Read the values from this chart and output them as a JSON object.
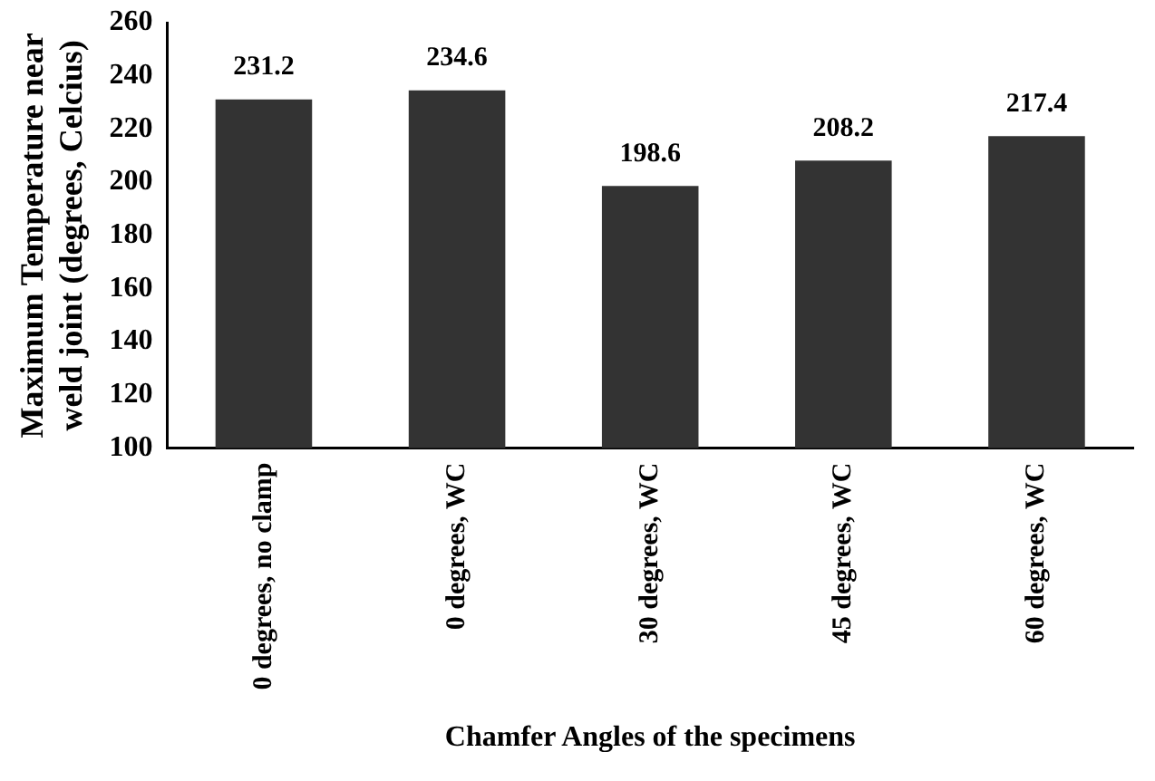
{
  "chart_data": {
    "type": "bar",
    "xlabel": "Chamfer Angles of the specimens",
    "ylabel": "Maximum Temperature near weld joint (degrees, Celcius)",
    "categories": [
      "0 degrees, no clamp",
      "0 degrees, WC",
      "30 degrees, WC",
      "45 degrees, WC",
      "60 degrees, WC"
    ],
    "values": [
      231.2,
      234.6,
      198.6,
      208.2,
      217.4
    ],
    "color": "#333333",
    "ylim": [
      100,
      260
    ],
    "yticks": [
      100,
      120,
      140,
      160,
      180,
      200,
      220,
      240,
      260
    ],
    "grid": false,
    "data_labels": true
  }
}
